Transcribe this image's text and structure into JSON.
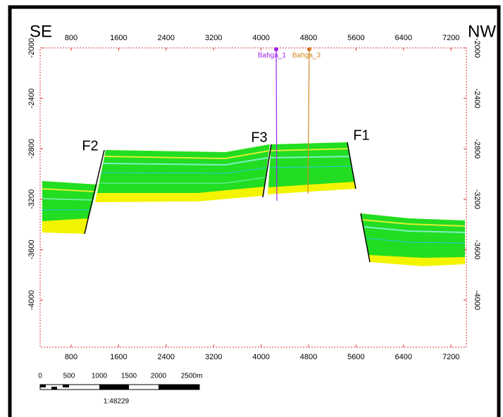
{
  "header": {
    "left": "SE",
    "right": "NW"
  },
  "axes": {
    "xticks": [
      800,
      1600,
      2400,
      3200,
      4000,
      4800,
      5600,
      6400,
      7200
    ],
    "yticks": [
      -2000,
      -2400,
      -2800,
      -3200,
      -3600,
      -4000
    ]
  },
  "faults": [
    "F1",
    "F2",
    "F3"
  ],
  "wells": [
    "Bahga_1",
    "Bahga_3"
  ],
  "scale_bar": {
    "labels": [
      "0",
      "500",
      "1000",
      "1500",
      "2000",
      "2500m"
    ],
    "ratio": "1:48229"
  }
}
